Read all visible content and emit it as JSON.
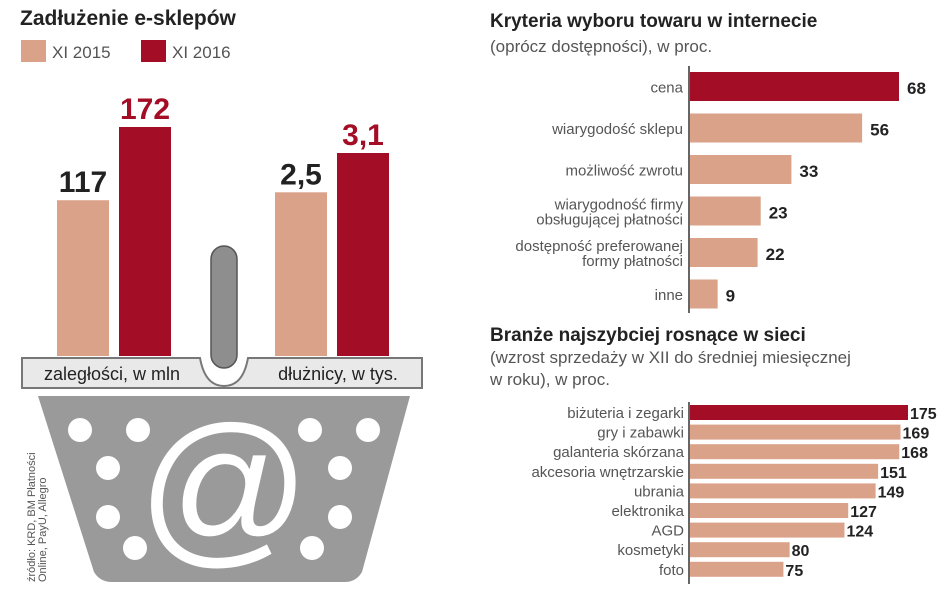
{
  "colors": {
    "light": "#dba28a",
    "dark": "#a30d26",
    "gray": "#8e8e8e",
    "tray": "#e9e9e9"
  },
  "chart_data": [
    {
      "type": "bar",
      "title": "Zadłużenie e-sklepów",
      "legend": [
        "XI 2015",
        "XI 2016"
      ],
      "legend_placement": "top-left",
      "categories": [
        "zaległości, w mln",
        "dłużnicy, w tys."
      ],
      "series": [
        {
          "name": "XI 2015",
          "values": [
            117,
            2.5
          ],
          "labels": [
            "117",
            "2,5"
          ]
        },
        {
          "name": "XI 2016",
          "values": [
            172,
            3.1
          ],
          "labels": [
            "172",
            "3,1"
          ]
        }
      ]
    },
    {
      "type": "bar",
      "orientation": "horizontal",
      "title": "Kryteria wyboru towaru w internecie",
      "subtitle": "(oprócz dostępności), w proc.",
      "categories": [
        [
          "cena"
        ],
        [
          "wiarygodość sklepu"
        ],
        [
          "możliwość zwrotu"
        ],
        [
          "wiarygodność firmy",
          "obsługującej płatności"
        ],
        [
          "dostępność preferowanej",
          "formy płatności"
        ],
        [
          "inne"
        ]
      ],
      "values": [
        68,
        56,
        33,
        23,
        22,
        9
      ],
      "highlight_index": 0
    },
    {
      "type": "bar",
      "orientation": "horizontal",
      "title": "Branże najszybciej rosnące w sieci",
      "subtitle": [
        "(wzrost sprzedaży w XII do średniej miesięcznej",
        "w roku), w proc."
      ],
      "categories": [
        "biżuteria i zegarki",
        "gry i zabawki",
        "galanteria skórzana",
        "akcesoria wnętrzarskie",
        "ubrania",
        "elektronika",
        "AGD",
        "kosmetyki",
        "foto"
      ],
      "values": [
        175,
        169,
        168,
        151,
        149,
        127,
        124,
        80,
        75
      ],
      "highlight_index": 0
    }
  ],
  "source": [
    "źródło: KRD, BM Płatności",
    "Online, PayU, Allegro"
  ],
  "basket_icon": "at-sign"
}
